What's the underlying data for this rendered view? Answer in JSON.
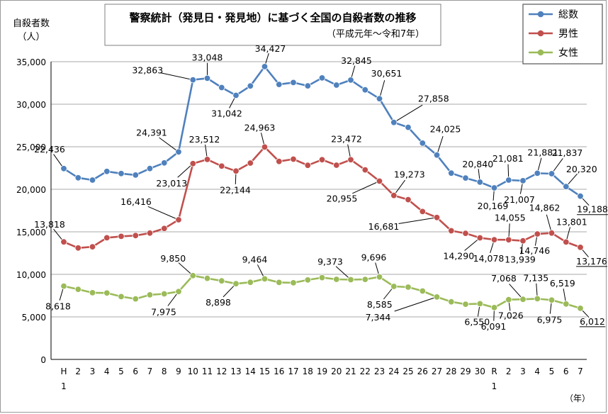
{
  "chart_data": {
    "type": "line",
    "title": "警察統計（発見日・発見地）に基づく全国の自殺者数の推移",
    "subtitle": "（平成元年～令和7年）",
    "ylabel": "自殺者数",
    "yunit": "（人）",
    "xunit": "（年）",
    "ylim": [
      0,
      35000
    ],
    "yticks": [
      "0",
      "5,000",
      "10,000",
      "15,000",
      "20,000",
      "25,000",
      "30,000",
      "35,000"
    ],
    "grid": "horizontal",
    "legend_position": "top-right",
    "categories": [
      "H1",
      "2",
      "3",
      "4",
      "5",
      "6",
      "7",
      "8",
      "9",
      "10",
      "11",
      "12",
      "13",
      "14",
      "15",
      "16",
      "17",
      "18",
      "19",
      "20",
      "21",
      "22",
      "23",
      "24",
      "25",
      "26",
      "27",
      "28",
      "29",
      "30",
      "R1",
      "2",
      "3",
      "4",
      "5",
      "6",
      "7"
    ],
    "x_labels": [
      {
        "top": "H",
        "bottom": "1"
      },
      {
        "top": "2"
      },
      {
        "top": "3"
      },
      {
        "top": "4"
      },
      {
        "top": "5"
      },
      {
        "top": "6"
      },
      {
        "top": "7"
      },
      {
        "top": "8"
      },
      {
        "top": "9"
      },
      {
        "top": "10"
      },
      {
        "top": "11"
      },
      {
        "top": "12"
      },
      {
        "top": "13"
      },
      {
        "top": "14"
      },
      {
        "top": "15"
      },
      {
        "top": "16"
      },
      {
        "top": "17"
      },
      {
        "top": "18"
      },
      {
        "top": "19"
      },
      {
        "top": "20"
      },
      {
        "top": "21"
      },
      {
        "top": "22"
      },
      {
        "top": "23"
      },
      {
        "top": "24"
      },
      {
        "top": "25"
      },
      {
        "top": "26"
      },
      {
        "top": "27"
      },
      {
        "top": "28"
      },
      {
        "top": "29"
      },
      {
        "top": "30"
      },
      {
        "top": "R",
        "bottom": "1"
      },
      {
        "top": "2"
      },
      {
        "top": "3"
      },
      {
        "top": "4"
      },
      {
        "top": "5"
      },
      {
        "top": "6"
      },
      {
        "top": "7"
      }
    ],
    "series": [
      {
        "name": "総数",
        "color": "#4f81bd",
        "values": [
          22436,
          21346,
          21084,
          22104,
          21851,
          21679,
          22445,
          23104,
          24391,
          32863,
          33048,
          31957,
          31042,
          32143,
          34427,
          32325,
          32552,
          32155,
          33093,
          32249,
          32845,
          31690,
          30651,
          27858,
          27283,
          25427,
          24025,
          21897,
          21321,
          20840,
          20169,
          21081,
          21007,
          21881,
          21837,
          20320,
          19188
        ],
        "labels": [
          {
            "i": 0,
            "text": "22,436"
          },
          {
            "i": 8,
            "text": "24,391"
          },
          {
            "i": 9,
            "text": "32,863"
          },
          {
            "i": 10,
            "text": "33,048"
          },
          {
            "i": 12,
            "text": "31,042"
          },
          {
            "i": 14,
            "text": "34,427"
          },
          {
            "i": 20,
            "text": "32,845"
          },
          {
            "i": 22,
            "text": "30,651"
          },
          {
            "i": 23,
            "text": "27,858"
          },
          {
            "i": 26,
            "text": "24,025"
          },
          {
            "i": 29,
            "text": "20,840"
          },
          {
            "i": 30,
            "text": "20,169"
          },
          {
            "i": 31,
            "text": "21,081"
          },
          {
            "i": 32,
            "text": "21,007"
          },
          {
            "i": 33,
            "text": "21,881"
          },
          {
            "i": 34,
            "text": "21,837"
          },
          {
            "i": 35,
            "text": "20,320"
          },
          {
            "i": 36,
            "text": "19,188"
          }
        ]
      },
      {
        "name": "男性",
        "color": "#c0504d",
        "values": [
          13818,
          13102,
          13242,
          14296,
          14468,
          14560,
          14853,
          15393,
          16416,
          23013,
          23512,
          22727,
          22144,
          23080,
          24963,
          23272,
          23540,
          22813,
          23478,
          22831,
          23472,
          22283,
          20955,
          19273,
          18787,
          17386,
          16681,
          15121,
          14826,
          14290,
          14078,
          14055,
          13939,
          14746,
          14862,
          13801,
          13176
        ],
        "labels": [
          {
            "i": 0,
            "text": "13,818"
          },
          {
            "i": 8,
            "text": "16,416"
          },
          {
            "i": 9,
            "text": "23,013"
          },
          {
            "i": 10,
            "text": "23,512"
          },
          {
            "i": 12,
            "text": "22,144"
          },
          {
            "i": 14,
            "text": "24,963"
          },
          {
            "i": 20,
            "text": "23,472"
          },
          {
            "i": 22,
            "text": "20,955"
          },
          {
            "i": 23,
            "text": "19,273"
          },
          {
            "i": 26,
            "text": "16,681"
          },
          {
            "i": 29,
            "text": "14,290"
          },
          {
            "i": 30,
            "text": "14,078"
          },
          {
            "i": 31,
            "text": "14,055"
          },
          {
            "i": 32,
            "text": "13,939"
          },
          {
            "i": 33,
            "text": "14,746"
          },
          {
            "i": 34,
            "text": "14,862"
          },
          {
            "i": 35,
            "text": "13,801"
          },
          {
            "i": 36,
            "text": "13,176"
          }
        ]
      },
      {
        "name": "女性",
        "color": "#9bbb59",
        "values": [
          8618,
          8244,
          7842,
          7808,
          7383,
          7119,
          7592,
          7711,
          7975,
          9850,
          9536,
          9230,
          8898,
          9063,
          9464,
          9053,
          9012,
          9342,
          9615,
          9418,
          9373,
          9407,
          9696,
          8585,
          8496,
          8041,
          7344,
          6776,
          6495,
          6550,
          6091,
          7026,
          7068,
          7135,
          6975,
          6519,
          6012
        ],
        "labels": [
          {
            "i": 0,
            "text": "8,618"
          },
          {
            "i": 8,
            "text": "7,975"
          },
          {
            "i": 9,
            "text": "9,850"
          },
          {
            "i": 12,
            "text": "8,898"
          },
          {
            "i": 14,
            "text": "9,464"
          },
          {
            "i": 20,
            "text": "9,373"
          },
          {
            "i": 22,
            "text": "9,696"
          },
          {
            "i": 23,
            "text": "8,585"
          },
          {
            "i": 26,
            "text": "7,344"
          },
          {
            "i": 29,
            "text": "6,550"
          },
          {
            "i": 30,
            "text": "6,091"
          },
          {
            "i": 31,
            "text": "7,026"
          },
          {
            "i": 32,
            "text": "7,068"
          },
          {
            "i": 33,
            "text": "7,135"
          },
          {
            "i": 34,
            "text": "6,975"
          },
          {
            "i": 35,
            "text": "6,519"
          },
          {
            "i": 36,
            "text": "6,012"
          }
        ]
      }
    ]
  }
}
